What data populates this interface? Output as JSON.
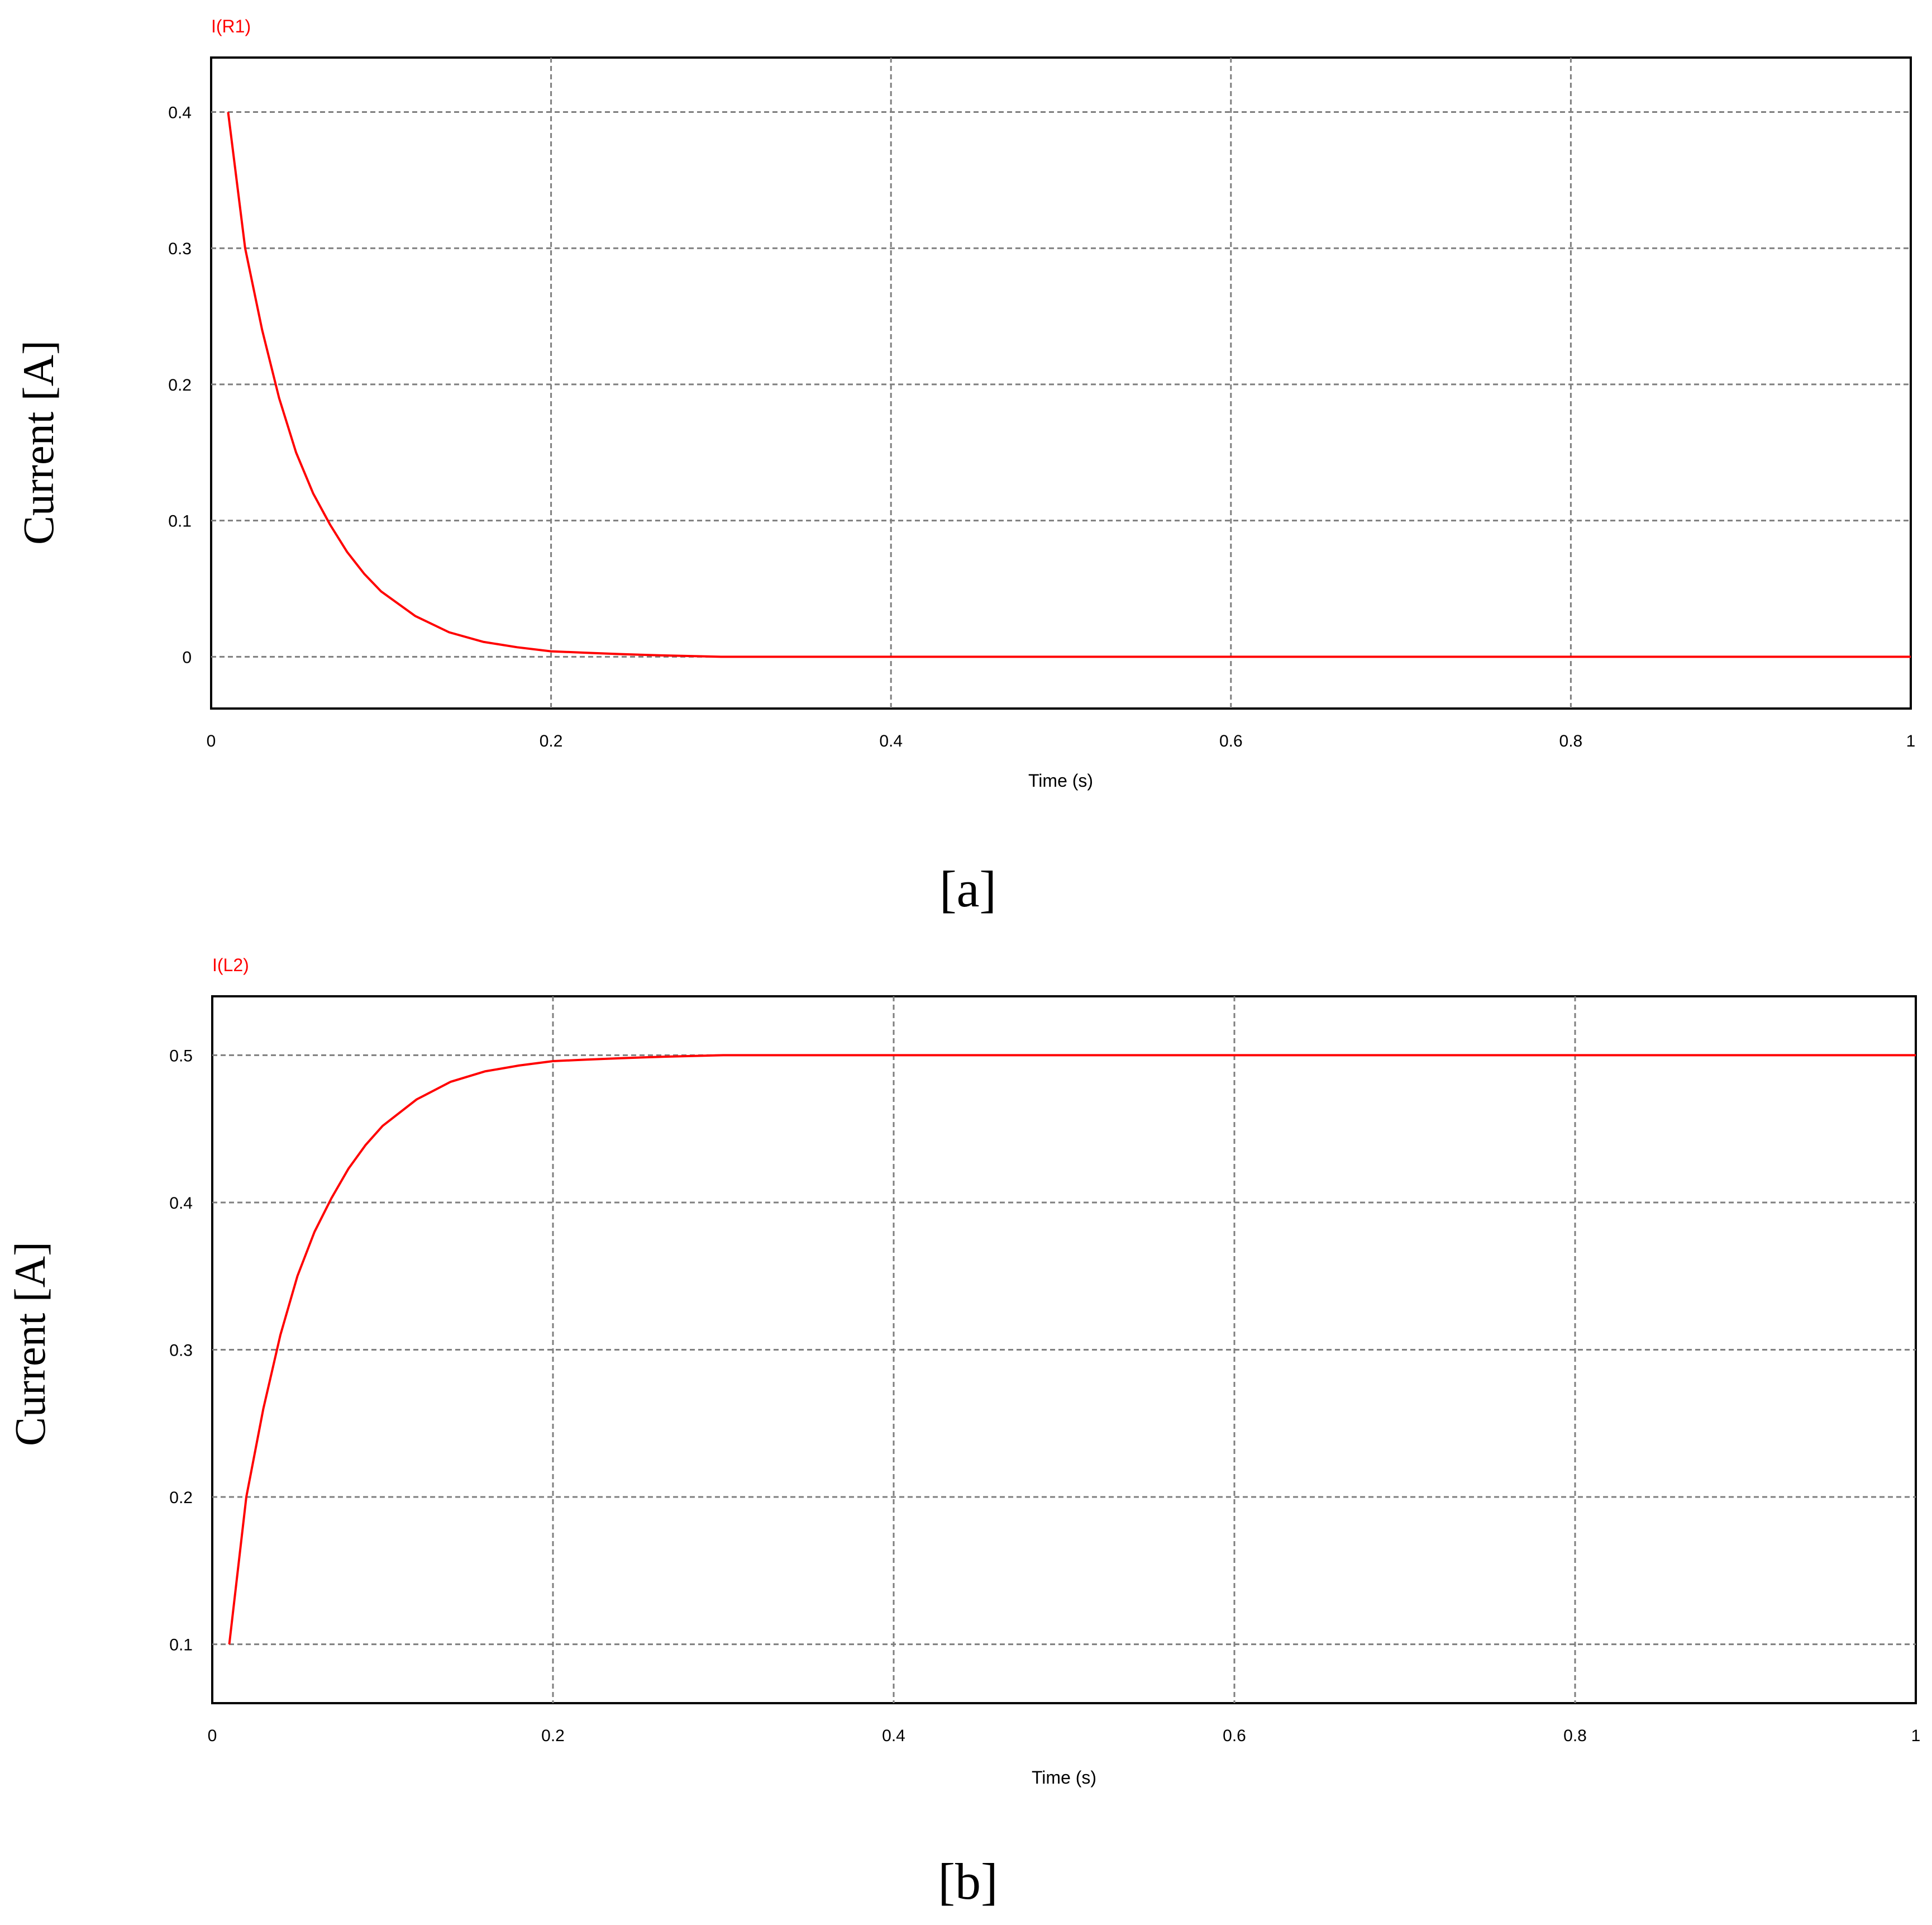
{
  "chart_data": [
    {
      "type": "line",
      "panel_label": "[a]",
      "trace_label": "I(R1)",
      "xlabel": "Time (s)",
      "ylabel": "Current [A]",
      "xlim": [
        0,
        1
      ],
      "ylim": [
        -0.038,
        0.44
      ],
      "xticks": [
        0,
        0.2,
        0.4,
        0.6,
        0.8,
        1
      ],
      "xtick_labels": [
        "0",
        "0.2",
        "0.4",
        "0.6",
        "0.8",
        "1"
      ],
      "yticks": [
        0,
        0.1,
        0.2,
        0.3,
        0.4
      ],
      "ytick_labels": [
        "0",
        "0.1",
        "0.2",
        "0.3",
        "0.4"
      ],
      "grid": true,
      "series": [
        {
          "color": "#ff0000",
          "x": [
            0.01,
            0.02,
            0.03,
            0.04,
            0.05,
            0.06,
            0.07,
            0.08,
            0.09,
            0.1,
            0.12,
            0.14,
            0.16,
            0.18,
            0.2,
            0.22,
            0.24,
            0.265,
            0.3,
            0.4,
            0.5,
            0.6,
            0.7,
            0.8,
            0.9,
            1.0
          ],
          "y": [
            0.4,
            0.3,
            0.24,
            0.19,
            0.15,
            0.12,
            0.097,
            0.077,
            0.061,
            0.048,
            0.03,
            0.018,
            0.011,
            0.007,
            0.004,
            0.003,
            0.002,
            0.001,
            0,
            0,
            0,
            0,
            0,
            0,
            0,
            0
          ]
        }
      ]
    },
    {
      "type": "line",
      "panel_label": "[b]",
      "trace_label": "I(L2)",
      "xlabel": "Time (s)",
      "ylabel": "Current [A]",
      "xlim": [
        0,
        1
      ],
      "ylim": [
        0.06,
        0.54
      ],
      "xticks": [
        0,
        0.2,
        0.4,
        0.6,
        0.8,
        1
      ],
      "xtick_labels": [
        "0",
        "0.2",
        "0.4",
        "0.6",
        "0.8",
        "1"
      ],
      "yticks": [
        0.1,
        0.2,
        0.3,
        0.4,
        0.5
      ],
      "ytick_labels": [
        "0.1",
        "0.2",
        "0.3",
        "0.4",
        "0.5"
      ],
      "grid": true,
      "series": [
        {
          "color": "#ff0000",
          "x": [
            0.01,
            0.02,
            0.03,
            0.04,
            0.05,
            0.06,
            0.07,
            0.08,
            0.09,
            0.1,
            0.12,
            0.14,
            0.16,
            0.18,
            0.2,
            0.22,
            0.24,
            0.265,
            0.3,
            0.4,
            0.5,
            0.6,
            0.7,
            0.8,
            0.9,
            1.0
          ],
          "y": [
            0.1,
            0.2,
            0.26,
            0.31,
            0.35,
            0.38,
            0.403,
            0.423,
            0.439,
            0.452,
            0.47,
            0.482,
            0.489,
            0.493,
            0.496,
            0.497,
            0.498,
            0.499,
            0.5,
            0.5,
            0.5,
            0.5,
            0.5,
            0.5,
            0.5,
            0.5
          ]
        }
      ]
    }
  ]
}
